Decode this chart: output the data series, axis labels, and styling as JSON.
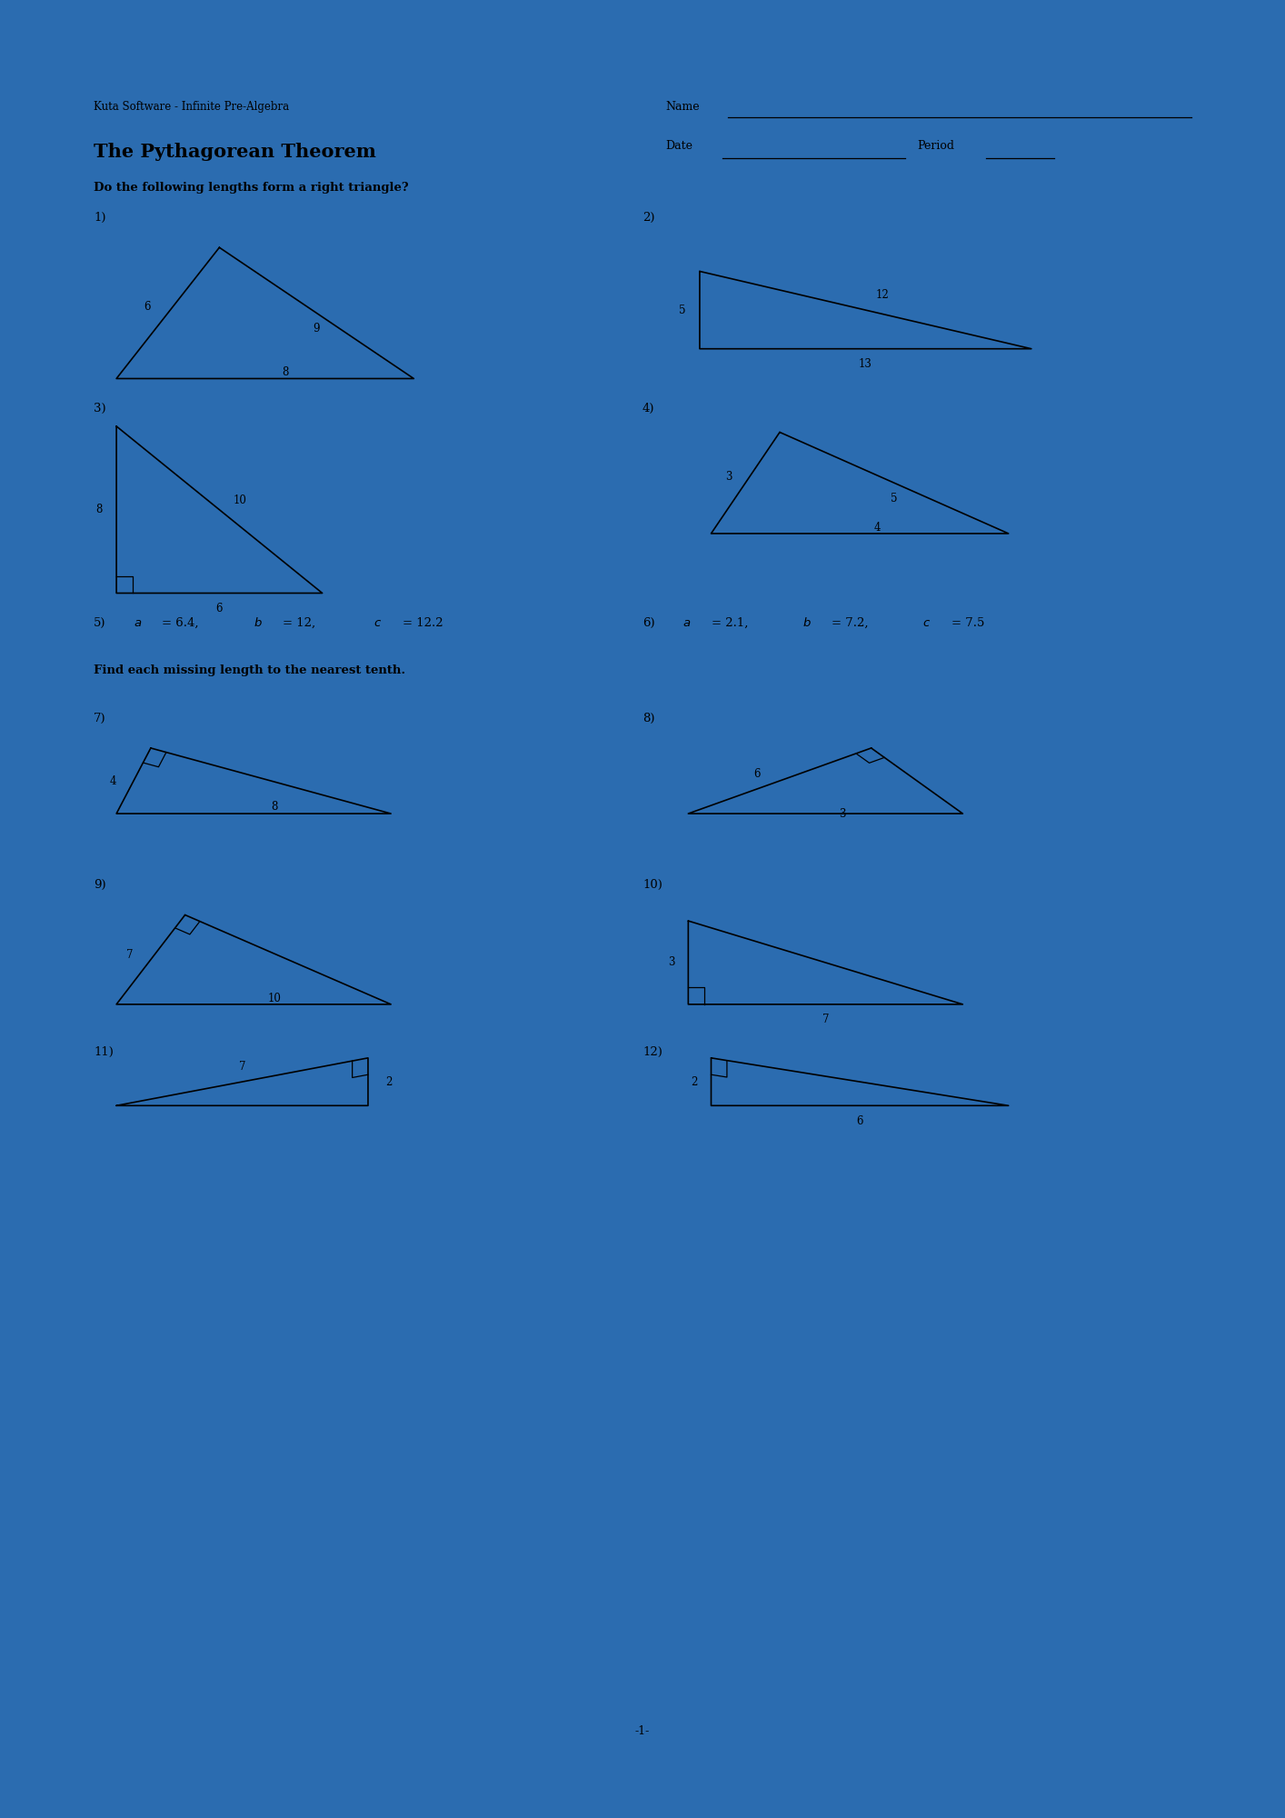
{
  "bg_color": "#2b6cb0",
  "page_color": "#ffffff",
  "header_software": "Kuta Software - Infinite Pre-Algebra",
  "header_name": "Name",
  "title": "The Pythagorean Theorem",
  "header_date": "Date",
  "header_period": "Period",
  "section1_label": "Do the following lengths form a right triangle?",
  "section2_label": "Find each missing length to the nearest tenth.",
  "footer": "-1-",
  "line_color": "#000000",
  "text_color": "#000000"
}
